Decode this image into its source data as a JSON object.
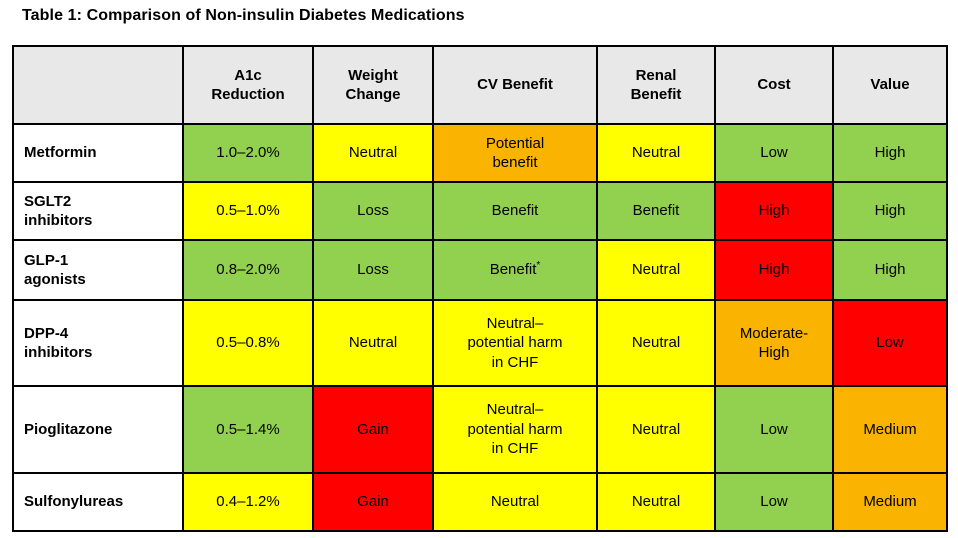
{
  "title": "Table 1: Comparison of Non-insulin Diabetes Medications",
  "palette": {
    "green": "#92D050",
    "yellow": "#FFFF00",
    "orange": "#FAB400",
    "red": "#FF0000",
    "header_gray": "#E8E8E8",
    "border_black": "#000000"
  },
  "table": {
    "columns": [
      "",
      "A1c\nReduction",
      "Weight\nChange",
      "CV Benefit",
      "Renal\nBenefit",
      "Cost",
      "Value"
    ],
    "rows": [
      {
        "name": "Metformin",
        "cells": [
          {
            "text": "1.0–2.0%",
            "color": "green"
          },
          {
            "text": "Neutral",
            "color": "yellow"
          },
          {
            "text": "Potential\nbenefit",
            "color": "orange"
          },
          {
            "text": "Neutral",
            "color": "yellow"
          },
          {
            "text": "Low",
            "color": "green"
          },
          {
            "text": "High",
            "color": "green"
          }
        ]
      },
      {
        "name": "SGLT2\ninhibitors",
        "cells": [
          {
            "text": "0.5–1.0%",
            "color": "yellow"
          },
          {
            "text": "Loss",
            "color": "green"
          },
          {
            "text": "Benefit",
            "color": "green"
          },
          {
            "text": "Benefit",
            "color": "green"
          },
          {
            "text": "High",
            "color": "red"
          },
          {
            "text": "High",
            "color": "green"
          }
        ]
      },
      {
        "name": "GLP-1\nagonists",
        "cells": [
          {
            "text": "0.8–2.0%",
            "color": "green"
          },
          {
            "text": "Loss",
            "color": "green"
          },
          {
            "text": "Benefit*",
            "color": "green"
          },
          {
            "text": "Neutral",
            "color": "yellow"
          },
          {
            "text": "High",
            "color": "red"
          },
          {
            "text": "High",
            "color": "green"
          }
        ]
      },
      {
        "name": "DPP-4\ninhibitors",
        "cells": [
          {
            "text": "0.5–0.8%",
            "color": "yellow"
          },
          {
            "text": "Neutral",
            "color": "yellow"
          },
          {
            "text": "Neutral–\npotential harm\nin CHF",
            "color": "yellow"
          },
          {
            "text": "Neutral",
            "color": "yellow"
          },
          {
            "text": "Moderate-\nHigh",
            "color": "orange"
          },
          {
            "text": "Low",
            "color": "red"
          }
        ]
      },
      {
        "name": "Pioglitazone",
        "cells": [
          {
            "text": "0.5–1.4%",
            "color": "green"
          },
          {
            "text": "Gain",
            "color": "red"
          },
          {
            "text": "Neutral–\npotential harm\nin CHF",
            "color": "yellow"
          },
          {
            "text": "Neutral",
            "color": "yellow"
          },
          {
            "text": "Low",
            "color": "green"
          },
          {
            "text": "Medium",
            "color": "orange"
          }
        ]
      },
      {
        "name": "Sulfonylureas",
        "cells": [
          {
            "text": "0.4–1.2%",
            "color": "yellow"
          },
          {
            "text": "Gain",
            "color": "red"
          },
          {
            "text": "Neutral",
            "color": "yellow"
          },
          {
            "text": "Neutral",
            "color": "yellow"
          },
          {
            "text": "Low",
            "color": "green"
          },
          {
            "text": "Medium",
            "color": "orange"
          }
        ]
      }
    ]
  }
}
